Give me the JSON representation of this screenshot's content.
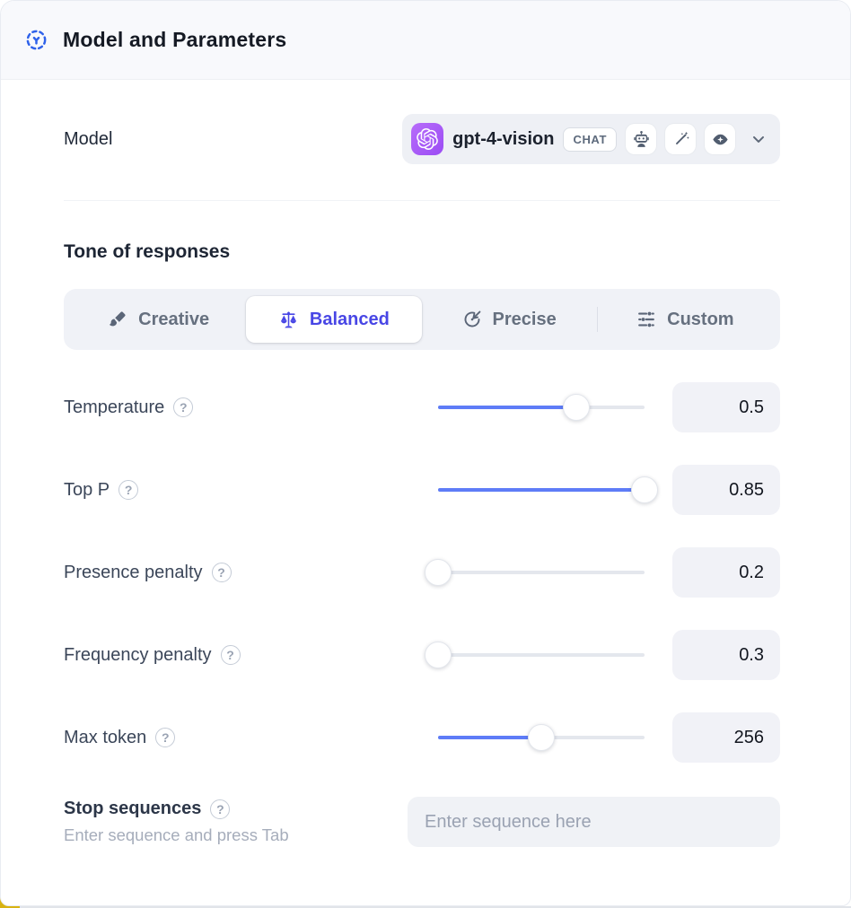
{
  "header": {
    "title": "Model and Parameters"
  },
  "model": {
    "label": "Model",
    "name": "gpt-4-vision",
    "type_badge": "CHAT",
    "provider_icon": "openai-logo",
    "capability_icons": [
      "robot-icon",
      "magic-wand-icon",
      "vision-eye-icon"
    ]
  },
  "tone": {
    "heading": "Tone of responses",
    "options": [
      {
        "label": "Creative",
        "icon": "paintbrush-icon",
        "selected": false
      },
      {
        "label": "Balanced",
        "icon": "balance-scale-icon",
        "selected": true
      },
      {
        "label": "Precise",
        "icon": "target-icon",
        "selected": false
      },
      {
        "label": "Custom",
        "icon": "sliders-icon",
        "selected": false
      }
    ]
  },
  "parameters": [
    {
      "label": "Temperature",
      "value": "0.5",
      "fill_percent": 67
    },
    {
      "label": "Top P",
      "value": "0.85",
      "fill_percent": 100
    },
    {
      "label": "Presence penalty",
      "value": "0.2",
      "fill_percent": 0
    },
    {
      "label": "Frequency penalty",
      "value": "0.3",
      "fill_percent": 0
    },
    {
      "label": "Max token",
      "value": "256",
      "fill_percent": 50
    }
  ],
  "stop_sequences": {
    "label": "Stop sequences",
    "hint": "Enter sequence and press Tab",
    "placeholder": "Enter sequence here"
  },
  "misc": {
    "help_glyph": "?"
  },
  "colors": {
    "header_icon_blue": "#2f62ea",
    "selected_tab_indigo": "#4846e5",
    "slider_blue": "#5e7cf7",
    "model_avatar_purple": "#a85ef7",
    "header_bg": "#f8f9fc",
    "control_bg": "#f0f2f7"
  }
}
